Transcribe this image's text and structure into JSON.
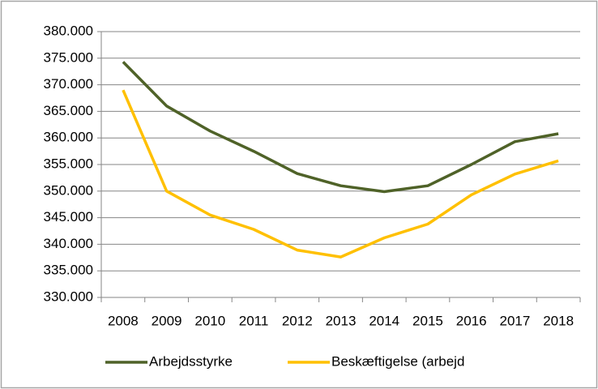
{
  "chart_data": {
    "type": "line",
    "categories": [
      "2008",
      "2009",
      "2010",
      "2011",
      "2012",
      "2013",
      "2014",
      "2015",
      "2016",
      "2017",
      "2018"
    ],
    "series": [
      {
        "name": "Arbejdsstyrke",
        "color": "#4f6228",
        "values": [
          374300,
          366000,
          361300,
          357500,
          353300,
          351000,
          349900,
          351000,
          355000,
          359300,
          360800
        ]
      },
      {
        "name": "Beskæftigelse (arbejd",
        "color": "#ffc000",
        "values": [
          369000,
          350000,
          345500,
          342800,
          338900,
          337600,
          341200,
          343800,
          349300,
          353200,
          355700
        ]
      }
    ],
    "ylim": [
      330000,
      380000
    ],
    "yticks": [
      {
        "value": 330000,
        "label": "330.000"
      },
      {
        "value": 335000,
        "label": "335.000"
      },
      {
        "value": 340000,
        "label": "340.000"
      },
      {
        "value": 345000,
        "label": "345.000"
      },
      {
        "value": 350000,
        "label": "350.000"
      },
      {
        "value": 355000,
        "label": "355.000"
      },
      {
        "value": 360000,
        "label": "360.000"
      },
      {
        "value": 365000,
        "label": "365.000"
      },
      {
        "value": 370000,
        "label": "370.000"
      },
      {
        "value": 375000,
        "label": "375.000"
      },
      {
        "value": 380000,
        "label": "380.000"
      }
    ],
    "grid": true,
    "legend": "bottom"
  }
}
